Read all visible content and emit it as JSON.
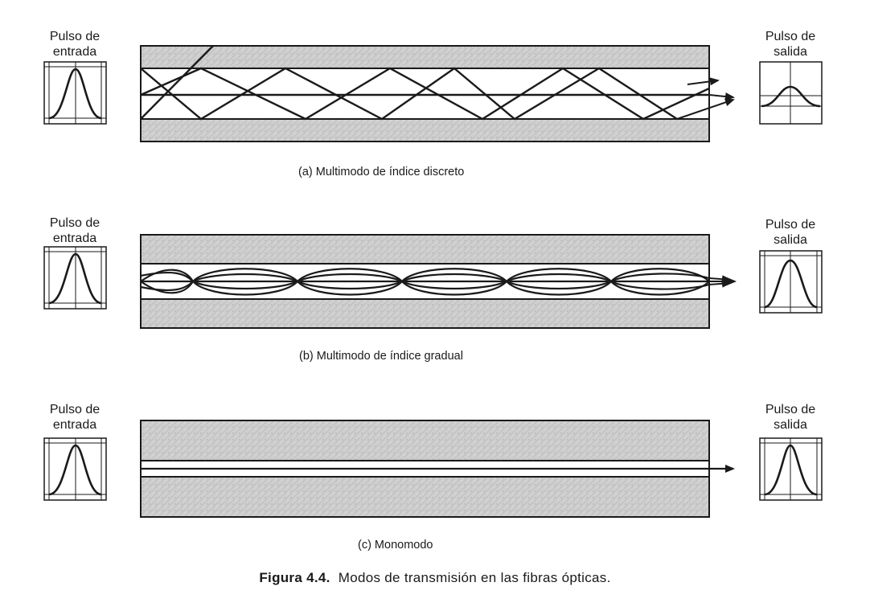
{
  "panels": [
    {
      "input_label_l1": "Pulso de",
      "input_label_l2": "entrada",
      "output_label_l1": "Pulso de",
      "output_label_l2": "salida",
      "caption": "(a) Multimodo de índice discreto"
    },
    {
      "input_label_l1": "Pulso de",
      "input_label_l2": "entrada",
      "output_label_l1": "Pulso de",
      "output_label_l2": "salida",
      "caption": "(b) Multimodo de índice gradual"
    },
    {
      "input_label_l1": "Pulso de",
      "input_label_l2": "entrada",
      "output_label_l1": "Pulso de",
      "output_label_l2": "salida",
      "caption": "(c) Monomodo"
    }
  ],
  "figure": {
    "label": "Figura 4.4.",
    "caption": "Modos de transmisión en las fibras ópticas."
  },
  "colors": {
    "ink": "#1a1a1a",
    "cladding": "#cfcfcf"
  }
}
